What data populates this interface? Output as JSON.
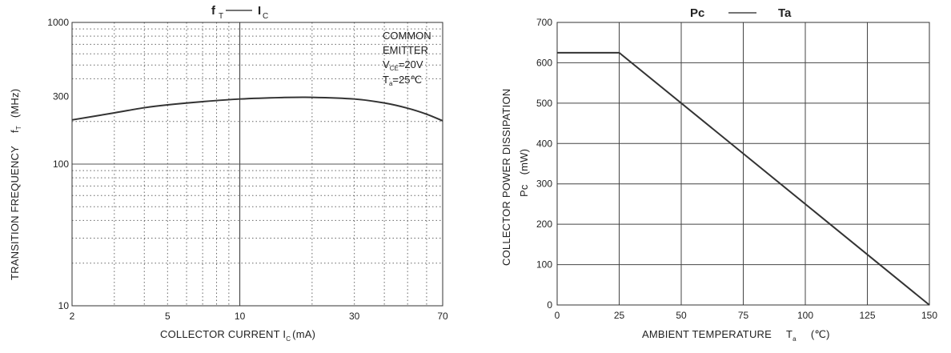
{
  "chart_data": [
    {
      "type": "line",
      "title": "fT —— IC",
      "title_parts": {
        "left_main": "f",
        "left_sub": "T",
        "right_main": "I",
        "right_sub": "C"
      },
      "xlabel": {
        "main": "COLLECTOR CURRENT I",
        "sub": "C",
        "unit": "(mA)"
      },
      "ylabel": {
        "main": "TRANSITION FREQUENCY",
        "symbol": "f",
        "symbol_sub": "T",
        "unit": "(MHz)"
      },
      "x_scale": "log",
      "y_scale": "log",
      "xlim": [
        2,
        70
      ],
      "ylim": [
        10,
        1000
      ],
      "x_ticks": [
        {
          "value": 2,
          "label": "2"
        },
        {
          "value": 5,
          "label": "5"
        },
        {
          "value": 10,
          "label": "10"
        },
        {
          "value": 30,
          "label": "30"
        },
        {
          "value": 70,
          "label": "70"
        }
      ],
      "y_ticks": [
        {
          "value": 10,
          "label": "10"
        },
        {
          "value": 100,
          "label": "100"
        },
        {
          "value": 300,
          "label": "300"
        },
        {
          "value": 1000,
          "label": "1000"
        }
      ],
      "annotation": {
        "line1": "COMMON",
        "line2": "EMITTER",
        "vce_main": "V",
        "vce_sub": "CE",
        "vce_value": "=20V",
        "ta_main": "T",
        "ta_sub": "a",
        "ta_value": "=25",
        "ta_unit": "℃"
      },
      "series": [
        {
          "x": [
            2,
            3,
            4,
            5,
            7,
            10,
            15,
            20,
            30,
            40,
            50,
            60,
            70
          ],
          "y": [
            205,
            230,
            250,
            262,
            276,
            288,
            295,
            296,
            288,
            270,
            248,
            225,
            202
          ]
        }
      ],
      "grid": true
    },
    {
      "type": "line",
      "title": "Pc —— Ta",
      "title_parts": {
        "left": "Pc",
        "right": "Ta"
      },
      "xlabel": {
        "main": "AMBIENT TEMPERATURE",
        "symbol": "T",
        "symbol_sub": "a",
        "unit": "(℃)"
      },
      "ylabel": {
        "main": "COLLECTOR POWER DISSIPATION",
        "symbol": "Pc",
        "unit": "(mW)"
      },
      "xlim": [
        0,
        150
      ],
      "ylim": [
        0,
        700
      ],
      "x_ticks": [
        "0",
        "25",
        "50",
        "75",
        "100",
        "125",
        "150"
      ],
      "y_ticks": [
        "0",
        "100",
        "200",
        "300",
        "400",
        "500",
        "600",
        "700"
      ],
      "series": [
        {
          "x": [
            0,
            25,
            150
          ],
          "y": [
            625,
            625,
            0
          ]
        }
      ],
      "grid": true
    }
  ],
  "colors": {
    "line": "#333333",
    "grid": "#444444",
    "dotted": "#666666"
  }
}
